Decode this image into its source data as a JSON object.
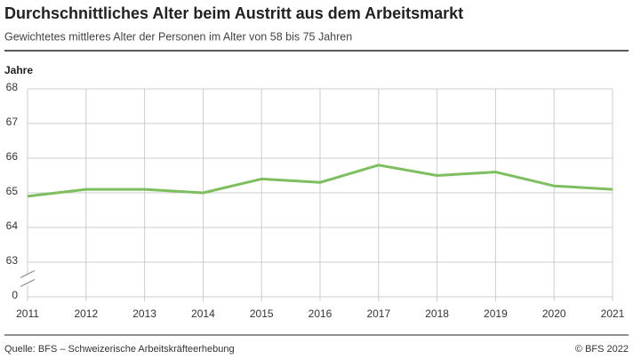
{
  "chart_data": {
    "type": "line",
    "title": "Durchschnittliches Alter beim Austritt aus dem Arbeitsmarkt",
    "subtitle": "Gewichtetes mittleres Alter der Personen im Alter von 58 bis 75 Jahren",
    "y_label": "Jahre",
    "source": "Quelle: BFS – Schweizerische Arbeitskräfteerhebung",
    "credit": "© BFS 2022",
    "x": [
      2011,
      2012,
      2013,
      2014,
      2015,
      2016,
      2017,
      2018,
      2019,
      2020,
      2021
    ],
    "series": [
      {
        "name": "Alter",
        "color": "#7dbf5e",
        "values": [
          64.9,
          65.1,
          65.1,
          65.0,
          65.4,
          65.3,
          65.8,
          65.5,
          65.6,
          65.2,
          65.1
        ]
      }
    ],
    "xlim": [
      2011,
      2021
    ],
    "xticks": [
      2011,
      2012,
      2013,
      2014,
      2015,
      2016,
      2017,
      2018,
      2019,
      2020,
      2021
    ],
    "ylim": [
      0,
      68
    ],
    "yticks": [
      0,
      63,
      64,
      65,
      66,
      67,
      68
    ],
    "axis_break": [
      0,
      63
    ],
    "grid": true
  }
}
